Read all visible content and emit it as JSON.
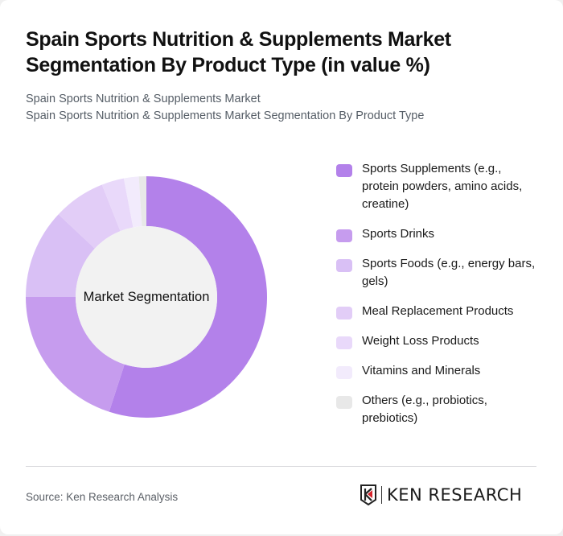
{
  "header": {
    "title": "Spain Sports Nutrition & Supplements Market Segmentation By Product Type (in value %)",
    "subtitle_line1": "Spain Sports Nutrition & Supplements Market",
    "subtitle_line2": "Spain Sports Nutrition & Supplements Market Segmentation By Product Type"
  },
  "chart": {
    "center_label": "Market Segmentation"
  },
  "legend": {
    "items": [
      {
        "label": "Sports Supplements (e.g., protein powders, amino acids, creatine)",
        "color": "#b381ea"
      },
      {
        "label": "Sports Drinks",
        "color": "#c69cee"
      },
      {
        "label": "Sports Foods (e.g., energy bars, gels)",
        "color": "#d9c0f5"
      },
      {
        "label": "Meal Replacement Products",
        "color": "#e2cdf7"
      },
      {
        "label": "Weight Loss Products",
        "color": "#e9d9fa"
      },
      {
        "label": "Vitamins and Minerals",
        "color": "#f2ebfc"
      },
      {
        "label": "Others (e.g., probiotics, prebiotics)",
        "color": "#e8e8e8"
      }
    ]
  },
  "footer": {
    "source": "Source: Ken Research Analysis",
    "logo_text": "KEN RESEARCH"
  },
  "chart_data": {
    "type": "pie",
    "subtype": "donut",
    "title": "Spain Sports Nutrition & Supplements Market Segmentation By Product Type (in value %)",
    "center_label": "Market Segmentation",
    "categories": [
      "Sports Supplements (e.g., protein powders, amino acids, creatine)",
      "Sports Drinks",
      "Sports Foods (e.g., energy bars, gels)",
      "Meal Replacement Products",
      "Weight Loss Products",
      "Vitamins and Minerals",
      "Others (e.g., probiotics, prebiotics)"
    ],
    "values": [
      55,
      20,
      12,
      7,
      3,
      2,
      1
    ],
    "unit": "%",
    "colors": [
      "#b381ea",
      "#c69cee",
      "#d9c0f5",
      "#e2cdf7",
      "#e9d9fa",
      "#f2ebfc",
      "#e8e8e8"
    ],
    "legend_position": "right",
    "start_angle": "top, clockwise"
  }
}
